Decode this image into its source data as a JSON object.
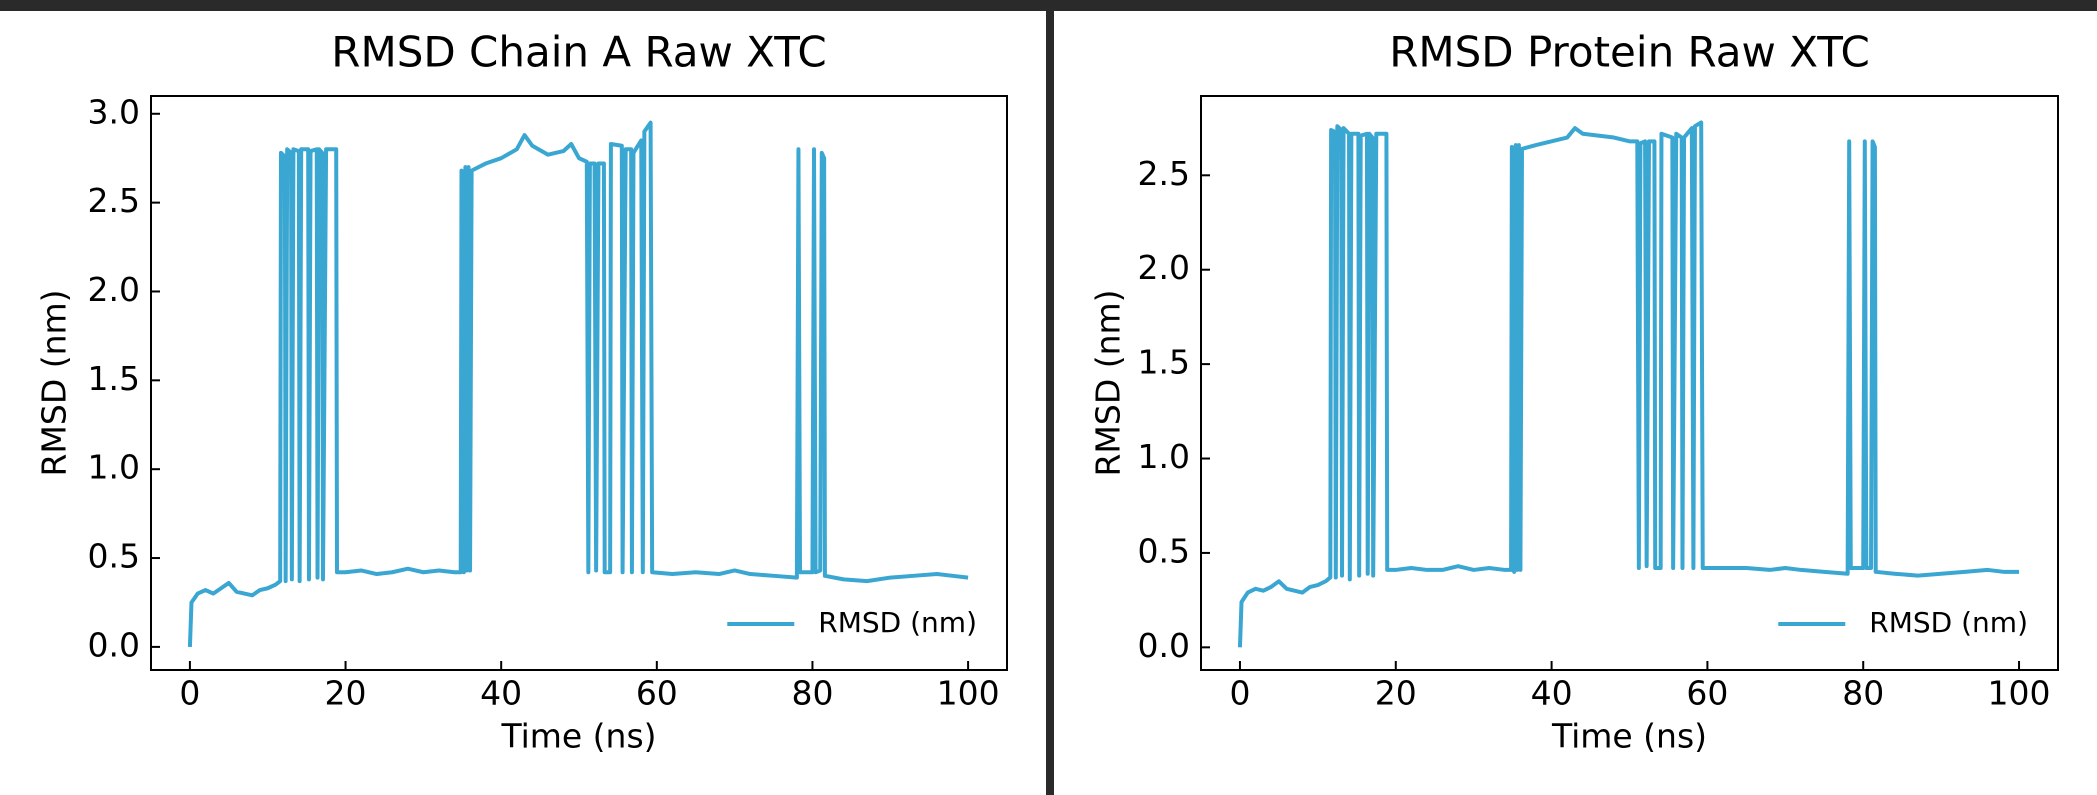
{
  "chart_data": [
    {
      "type": "line",
      "title": "RMSD Chain A Raw XTC",
      "xlabel": "Time (ns)",
      "ylabel": "RMSD (nm)",
      "xlim": [
        -5,
        105
      ],
      "xticks": [
        0,
        20,
        40,
        60,
        80,
        100
      ],
      "ylim": [
        -0.13,
        3.1
      ],
      "yticks": [
        {
          "value": 0,
          "label": "0.0"
        },
        0.5,
        {
          "value": 1,
          "label": "1.0"
        },
        1.5,
        {
          "value": 2,
          "label": "2.0"
        },
        2.5,
        {
          "value": 3,
          "label": "3.0"
        }
      ],
      "grid": false,
      "legend": "lower right",
      "x": [
        0,
        0.2,
        1,
        2,
        3,
        4,
        5,
        6,
        7,
        8,
        9,
        10,
        11,
        11.6,
        11.7,
        12.2,
        12.3,
        12.5,
        13,
        13.1,
        13.3,
        14,
        14.1,
        14.3,
        15.2,
        15.3,
        15.5,
        16.3,
        16.4,
        16.6,
        17,
        17.1,
        17.5,
        18.8,
        18.9,
        20,
        22,
        24,
        26,
        28,
        30,
        32,
        34,
        34.8,
        34.9,
        35.2,
        35.4,
        35.6,
        35.8,
        36,
        36.2,
        38,
        40,
        42,
        43,
        44,
        46,
        48,
        49,
        50,
        51,
        51.2,
        51.4,
        52,
        52.2,
        52.5,
        53.2,
        53.3,
        54,
        54.1,
        55.5,
        55.6,
        56,
        56.7,
        56.8,
        57,
        58,
        58.2,
        58.4,
        59.2,
        59.4,
        62,
        65,
        68,
        70,
        72,
        75,
        78,
        78.2,
        78.4,
        80,
        80.2,
        80.4,
        81,
        81.2,
        81.5,
        81.6,
        84,
        87,
        90,
        93,
        96,
        98,
        100
      ],
      "series": [
        {
          "name": "RMSD (nm)",
          "color": "#3aa6d2",
          "values": [
            0,
            0.25,
            0.3,
            0.32,
            0.3,
            0.33,
            0.36,
            0.31,
            0.3,
            0.29,
            0.32,
            0.33,
            0.35,
            0.37,
            2.78,
            2.76,
            0.37,
            2.8,
            2.78,
            0.38,
            2.8,
            2.79,
            0.37,
            2.8,
            2.8,
            0.38,
            2.79,
            2.8,
            0.39,
            2.8,
            2.78,
            0.38,
            2.8,
            2.8,
            0.42,
            0.42,
            0.43,
            0.41,
            0.42,
            0.44,
            0.42,
            0.43,
            0.42,
            0.42,
            2.68,
            0.42,
            2.7,
            0.43,
            2.7,
            0.43,
            2.68,
            2.72,
            2.75,
            2.8,
            2.88,
            2.82,
            2.77,
            2.79,
            2.83,
            2.75,
            2.73,
            0.42,
            2.72,
            2.72,
            0.43,
            2.72,
            2.72,
            0.42,
            0.42,
            2.83,
            2.82,
            0.42,
            2.8,
            2.8,
            0.42,
            2.78,
            2.85,
            0.42,
            2.9,
            2.95,
            0.42,
            0.41,
            0.42,
            0.41,
            0.43,
            0.41,
            0.4,
            0.39,
            2.8,
            0.42,
            0.42,
            2.8,
            0.42,
            0.43,
            2.78,
            2.75,
            0.4,
            0.38,
            0.37,
            0.39,
            0.4,
            0.41,
            0.4,
            0.39
          ]
        }
      ]
    },
    {
      "type": "line",
      "title": "RMSD Protein Raw XTC",
      "xlabel": "Time (ns)",
      "ylabel": "RMSD (nm)",
      "xlim": [
        -5,
        105
      ],
      "xticks": [
        0,
        20,
        40,
        60,
        80,
        100
      ],
      "ylim": [
        -0.12,
        2.92
      ],
      "yticks": [
        {
          "value": 0,
          "label": "0.0"
        },
        0.5,
        {
          "value": 1,
          "label": "1.0"
        },
        1.5,
        {
          "value": 2,
          "label": "2.0"
        },
        2.5
      ],
      "grid": false,
      "legend": "lower right",
      "x": [
        0,
        0.2,
        1,
        2,
        3,
        4,
        5,
        6,
        7,
        8,
        9,
        10,
        11,
        11.6,
        11.7,
        12.2,
        12.3,
        12.5,
        13,
        13.1,
        13.3,
        14,
        14.1,
        14.3,
        15.2,
        15.3,
        15.5,
        16.3,
        16.4,
        16.6,
        17,
        17.1,
        17.5,
        18.8,
        18.9,
        20,
        22,
        24,
        26,
        28,
        30,
        32,
        34,
        34.8,
        34.9,
        35.2,
        35.4,
        35.6,
        35.8,
        36,
        36.2,
        38,
        40,
        42,
        43,
        44,
        46,
        48,
        49,
        50,
        51,
        51.2,
        51.4,
        52,
        52.2,
        52.5,
        53.2,
        53.3,
        54,
        54.1,
        55.5,
        55.6,
        56,
        56.7,
        56.8,
        57,
        58,
        58.2,
        58.4,
        59.2,
        59.4,
        62,
        65,
        68,
        70,
        72,
        75,
        78,
        78.2,
        78.4,
        80,
        80.2,
        80.4,
        81,
        81.2,
        81.5,
        81.6,
        84,
        87,
        90,
        93,
        96,
        98,
        100
      ],
      "series": [
        {
          "name": "RMSD (nm)",
          "color": "#3aa6d2",
          "values": [
            0,
            0.24,
            0.29,
            0.31,
            0.3,
            0.32,
            0.35,
            0.31,
            0.3,
            0.29,
            0.32,
            0.33,
            0.35,
            0.37,
            2.74,
            2.73,
            0.37,
            2.76,
            2.74,
            0.38,
            2.75,
            2.72,
            0.36,
            2.72,
            2.72,
            0.38,
            2.71,
            2.72,
            0.39,
            2.72,
            2.7,
            0.38,
            2.72,
            2.72,
            0.41,
            0.41,
            0.42,
            0.41,
            0.41,
            0.43,
            0.41,
            0.42,
            0.41,
            0.41,
            2.65,
            0.4,
            2.66,
            0.41,
            2.66,
            0.41,
            2.64,
            2.66,
            2.68,
            2.7,
            2.75,
            2.72,
            2.71,
            2.7,
            2.69,
            2.68,
            2.68,
            0.42,
            2.67,
            2.68,
            0.43,
            2.68,
            2.68,
            0.42,
            0.42,
            2.72,
            2.7,
            0.42,
            2.72,
            2.7,
            0.42,
            2.7,
            2.75,
            0.42,
            2.76,
            2.78,
            0.42,
            0.42,
            0.42,
            0.41,
            0.42,
            0.41,
            0.4,
            0.39,
            2.68,
            0.42,
            0.42,
            2.68,
            0.42,
            0.42,
            2.68,
            2.65,
            0.4,
            0.39,
            0.38,
            0.39,
            0.4,
            0.41,
            0.4,
            0.4
          ]
        }
      ]
    }
  ]
}
